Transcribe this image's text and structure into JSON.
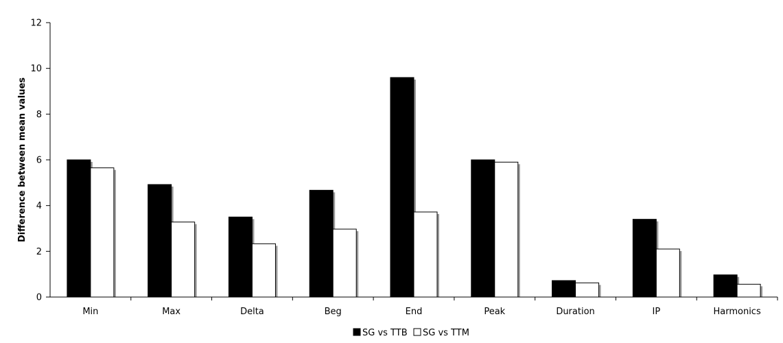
{
  "chart_data": {
    "type": "bar",
    "categories": [
      "Min",
      "Max",
      "Delta",
      "Beg",
      "End",
      "Peak",
      "Duration",
      "IP",
      "Harmonics"
    ],
    "series": [
      {
        "name": "SG vs TTB",
        "values": [
          6.0,
          4.92,
          3.5,
          4.67,
          9.6,
          6.0,
          0.72,
          3.4,
          0.97
        ],
        "color": "#000000"
      },
      {
        "name": "SG vs TTM",
        "values": [
          5.65,
          3.28,
          2.33,
          2.97,
          3.72,
          5.9,
          0.62,
          2.1,
          0.56
        ],
        "color": "#ffffff"
      }
    ],
    "title": "",
    "xlabel": "",
    "ylabel": "Difference between mean values",
    "ylim": [
      0,
      12
    ],
    "yticks": [
      "0",
      "2",
      "4",
      "6",
      "8",
      "10",
      "12"
    ],
    "grid": false,
    "legend_position": "bottom"
  }
}
